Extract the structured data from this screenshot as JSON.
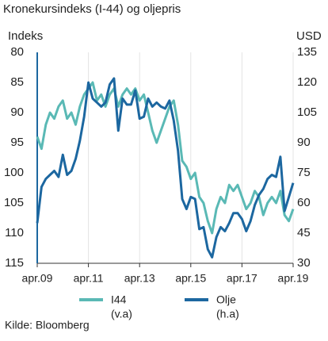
{
  "chart_data": {
    "type": "line",
    "title": "Kronekursindeks (I-44) og oljepris",
    "y_label": "Indeks",
    "y2_label": "USD",
    "source": "Kilde: Bloomberg",
    "categories": [
      "apr.09",
      null,
      null,
      null,
      null,
      null,
      null,
      null,
      null,
      null,
      null,
      null,
      "apr.11",
      null,
      null,
      null,
      null,
      null,
      null,
      null,
      null,
      null,
      null,
      null,
      "apr.13",
      null,
      null,
      null,
      null,
      null,
      null,
      null,
      null,
      null,
      null,
      null,
      "apr.15",
      null,
      null,
      null,
      null,
      null,
      null,
      null,
      null,
      null,
      null,
      null,
      "apr.17",
      null,
      null,
      null,
      null,
      null,
      null,
      null,
      null,
      null,
      null,
      null,
      "apr.19"
    ],
    "ylim": [
      115,
      80
    ],
    "yticks": [
      80,
      85,
      90,
      95,
      100,
      105,
      110,
      115
    ],
    "y2lim": [
      30,
      135
    ],
    "y2ticks": [
      30,
      45,
      60,
      75,
      90,
      105,
      120,
      135
    ],
    "grid": true,
    "series": [
      {
        "name": "I44",
        "axis_note": "(v.a)",
        "color": "#5ab9b5",
        "axis": "y",
        "values": [
          94,
          96,
          92,
          90,
          91,
          89,
          88,
          91,
          90,
          92,
          89,
          87,
          86,
          85,
          88,
          87,
          89,
          87,
          86,
          89,
          87,
          86,
          87,
          86,
          88,
          87,
          90,
          93,
          95,
          93,
          91,
          89,
          88,
          92,
          98,
          99,
          101,
          100,
          104,
          105,
          108,
          110,
          106,
          104,
          105,
          102,
          103,
          102,
          104,
          106,
          105,
          103,
          104,
          107,
          105,
          104,
          105,
          103,
          107,
          108,
          106
        ]
      },
      {
        "name": "Olje",
        "axis_note": "(h.a)",
        "color": "#1c67a0",
        "axis": "y2",
        "values": [
          50,
          68,
          72,
          74,
          76,
          73,
          84,
          74,
          76,
          82,
          91,
          103,
          120,
          112,
          110,
          108,
          110,
          119,
          122,
          96,
          112,
          109,
          109,
          116,
          102,
          103,
          112,
          108,
          110,
          108,
          107,
          111,
          101,
          86,
          62,
          57,
          63,
          62,
          47,
          48,
          37,
          33,
          43,
          48,
          46,
          50,
          55,
          55,
          52,
          46,
          51,
          59,
          64,
          67,
          72,
          74,
          73,
          83,
          56,
          63,
          70
        ]
      }
    ]
  }
}
